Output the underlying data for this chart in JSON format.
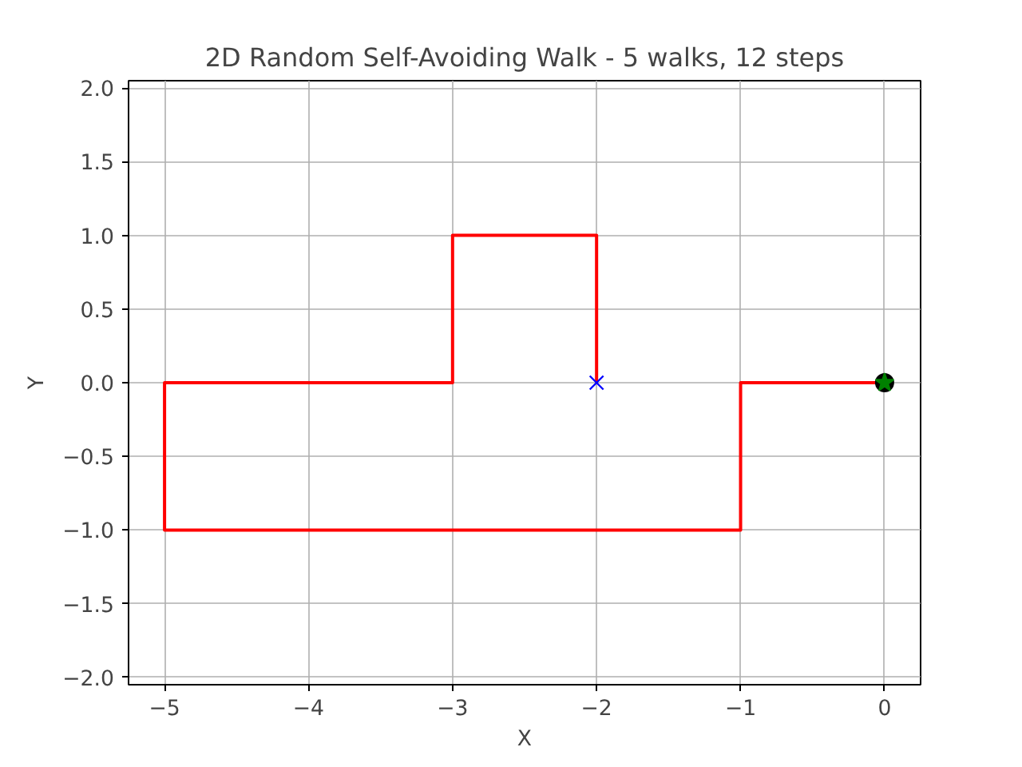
{
  "chart_data": {
    "type": "line",
    "title": "2D Random Self-Avoiding Walk - 5 walks, 12 steps",
    "xlabel": "X",
    "ylabel": "Y",
    "xlim": [
      -5.25,
      0.25
    ],
    "ylim": [
      -2.05,
      2.05
    ],
    "xticks": [
      {
        "value": -5,
        "label": "−5"
      },
      {
        "value": -4,
        "label": "−4"
      },
      {
        "value": -3,
        "label": "−3"
      },
      {
        "value": -2,
        "label": "−2"
      },
      {
        "value": -1,
        "label": "−1"
      },
      {
        "value": 0,
        "label": "0"
      }
    ],
    "yticks": [
      {
        "value": -2,
        "label": "−2.0"
      },
      {
        "value": -1.5,
        "label": "−1.5"
      },
      {
        "value": -1,
        "label": "−1.0"
      },
      {
        "value": -0.5,
        "label": "−0.5"
      },
      {
        "value": 0,
        "label": "0.0"
      },
      {
        "value": 0.5,
        "label": "0.5"
      },
      {
        "value": 1,
        "label": "1.0"
      },
      {
        "value": 1.5,
        "label": "1.5"
      },
      {
        "value": 2,
        "label": "2.0"
      }
    ],
    "grid": true,
    "series": [
      {
        "color": "#ff0000",
        "x": [
          0,
          -1,
          -1,
          -2,
          -3,
          -4,
          -5,
          -5,
          -4,
          -3,
          -3,
          -2,
          -2
        ],
        "values": [
          0,
          0,
          -1,
          -1,
          -1,
          -1,
          -1,
          0,
          0,
          0,
          1,
          1,
          0
        ]
      },
      {
        "type": "scatter",
        "marker": "circle",
        "color": "#000000",
        "x": [
          0
        ],
        "values": [
          0
        ]
      },
      {
        "type": "scatter",
        "marker": "star",
        "color": "#008000",
        "x": [
          0
        ],
        "values": [
          0
        ]
      },
      {
        "type": "scatter",
        "marker": "cross",
        "color": "#0000ff",
        "x": [
          -2
        ],
        "values": [
          0
        ]
      }
    ]
  }
}
